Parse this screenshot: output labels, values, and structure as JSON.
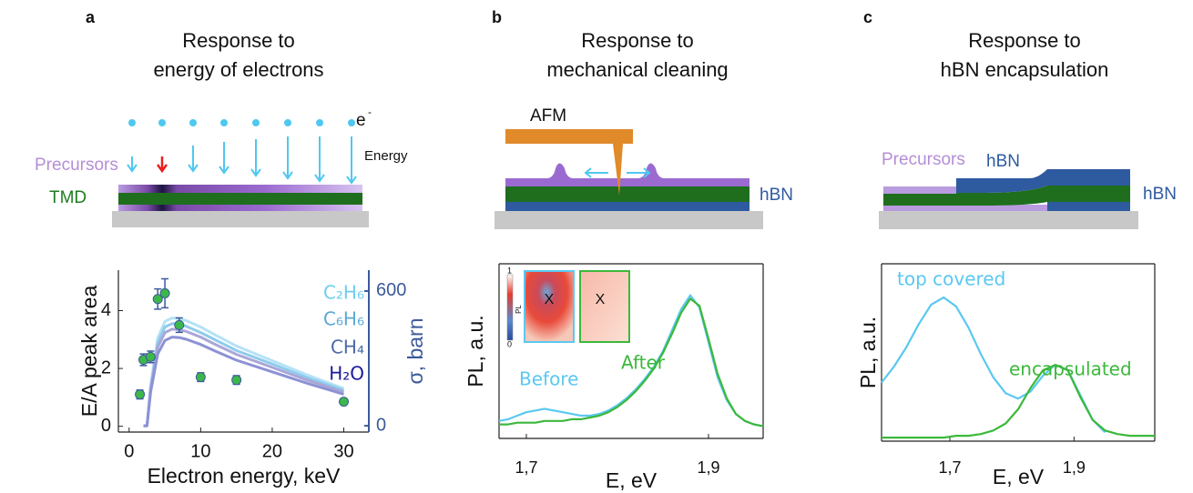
{
  "panels": [
    {
      "label": "a",
      "title_lines": [
        "Response to",
        "energy of electrons"
      ]
    },
    {
      "label": "b",
      "title_lines": [
        "Response to",
        "mechanical cleaning"
      ]
    },
    {
      "label": "c",
      "title_lines": [
        "Response to",
        "hBN encapsulation"
      ]
    }
  ],
  "diagrams": {
    "a": {
      "electron": "e",
      "electron_charge": "-",
      "precursors": "Precursors",
      "tmd": "TMD",
      "energy": "Energy"
    },
    "b": {
      "afm": "AFM",
      "hbn": "hBN"
    },
    "c": {
      "precursors": "Precursors",
      "hbn_top": "hBN",
      "hbn_right": "hBN"
    }
  },
  "inset": {
    "colorbar_max": "1",
    "colorbar_min": "0",
    "colorbar_label": "PL",
    "markers": [
      "X",
      "X"
    ]
  },
  "chart_data": [
    {
      "type": "line",
      "x_label": "Electron energy, keV",
      "y_label": "E/A peak area",
      "y2_label": "σ, barn",
      "xlim": [
        -1.5,
        33.5
      ],
      "xticks": [
        0,
        10,
        20,
        30
      ],
      "ylim": [
        -0.2,
        5.4
      ],
      "yticks": [
        0,
        2,
        4
      ],
      "y2lim": [
        -28,
        693
      ],
      "y2ticks": [
        0,
        600
      ],
      "y2_color": "#3c5a9a",
      "series": [
        {
          "name": "C₂H₆",
          "type": "line",
          "axis": "y2",
          "color": "#b5e2f6",
          "label_color": "#6fcff0",
          "x": [
            2,
            2.5,
            3,
            4,
            5,
            6,
            7,
            8,
            10,
            12,
            15,
            20,
            25,
            30
          ],
          "values": [
            0,
            0,
            180,
            390,
            465,
            480,
            477,
            468,
            440,
            405,
            355,
            290,
            225,
            166
          ]
        },
        {
          "name": "C₆H₆",
          "type": "line",
          "axis": "y2",
          "color": "#8fcbec",
          "label_color": "#5aa9d6",
          "x": [
            2,
            2.5,
            3,
            4,
            5,
            6,
            7,
            8,
            10,
            12,
            15,
            20,
            25,
            30
          ],
          "values": [
            0,
            0,
            170,
            370,
            440,
            455,
            452,
            443,
            415,
            383,
            335,
            275,
            213,
            158
          ]
        },
        {
          "name": "CH₄",
          "type": "line",
          "axis": "y2",
          "color": "#a9a6d8",
          "label_color": "#4a6aa8",
          "x": [
            2,
            2.5,
            3,
            4,
            5,
            6,
            7,
            8,
            10,
            12,
            15,
            20,
            25,
            30
          ],
          "values": [
            0,
            0,
            160,
            350,
            415,
            430,
            428,
            420,
            395,
            363,
            318,
            260,
            202,
            150
          ]
        },
        {
          "name": "H₂O",
          "type": "line",
          "axis": "y2",
          "color": "#8c92d4",
          "label_color": "#1a1a9a",
          "x": [
            2,
            2.5,
            3,
            4,
            5,
            6,
            7,
            8,
            10,
            12,
            15,
            20,
            25,
            30
          ],
          "values": [
            0,
            0,
            150,
            320,
            380,
            395,
            393,
            385,
            362,
            333,
            292,
            240,
            188,
            140
          ]
        },
        {
          "type": "scatter",
          "color": "#3cb84a",
          "error_color": "#3c5a9a",
          "x": [
            1.5,
            2,
            3,
            4,
            5,
            7,
            10,
            15,
            30
          ],
          "values": [
            1.1,
            2.3,
            2.4,
            4.4,
            4.6,
            3.5,
            1.7,
            1.6,
            0.85
          ],
          "errors": [
            0.15,
            0.2,
            0.2,
            0.35,
            0.5,
            0.25,
            0.15,
            0.15,
            0.1
          ]
        }
      ]
    },
    {
      "type": "line",
      "x_label": "E, eV",
      "y_label": "PL, a.u.",
      "xlim": [
        1.67,
        1.96
      ],
      "xticks": [
        {
          "value": 1.7,
          "label": "1,7"
        },
        {
          "value": 1.9,
          "label": "1,9"
        }
      ],
      "ylim": [
        0,
        1
      ],
      "series": [
        {
          "name": "Before",
          "color": "#5bc8f0",
          "x": [
            1.67,
            1.68,
            1.69,
            1.7,
            1.71,
            1.72,
            1.73,
            1.74,
            1.75,
            1.76,
            1.77,
            1.78,
            1.79,
            1.8,
            1.81,
            1.82,
            1.83,
            1.84,
            1.85,
            1.86,
            1.87,
            1.88,
            1.89,
            1.9,
            1.91,
            1.92,
            1.93,
            1.94,
            1.95,
            1.96
          ],
          "values": [
            0.1,
            0.11,
            0.13,
            0.15,
            0.16,
            0.17,
            0.16,
            0.15,
            0.14,
            0.13,
            0.13,
            0.14,
            0.16,
            0.19,
            0.23,
            0.28,
            0.34,
            0.41,
            0.5,
            0.62,
            0.74,
            0.82,
            0.75,
            0.55,
            0.35,
            0.22,
            0.14,
            0.1,
            0.08,
            0.07
          ]
        },
        {
          "name": "After",
          "color": "#3cb83c",
          "x": [
            1.67,
            1.68,
            1.69,
            1.7,
            1.71,
            1.72,
            1.73,
            1.74,
            1.75,
            1.76,
            1.77,
            1.78,
            1.79,
            1.8,
            1.81,
            1.82,
            1.83,
            1.84,
            1.85,
            1.86,
            1.87,
            1.88,
            1.89,
            1.9,
            1.91,
            1.92,
            1.93,
            1.94,
            1.95,
            1.96
          ],
          "values": [
            0.08,
            0.08,
            0.09,
            0.09,
            0.09,
            0.1,
            0.1,
            0.1,
            0.11,
            0.11,
            0.12,
            0.13,
            0.15,
            0.18,
            0.22,
            0.27,
            0.33,
            0.4,
            0.49,
            0.6,
            0.72,
            0.8,
            0.76,
            0.57,
            0.37,
            0.23,
            0.14,
            0.1,
            0.08,
            0.07
          ]
        }
      ]
    },
    {
      "type": "line",
      "x_label": "E, eV",
      "y_label": "PL, a.u.",
      "xlim": [
        1.59,
        2.03
      ],
      "xticks": [
        {
          "value": 1.7,
          "label": "1,7"
        },
        {
          "value": 1.9,
          "label": "1,9"
        }
      ],
      "ylim": [
        0,
        1
      ],
      "series": [
        {
          "name": "top covered",
          "color": "#5bc8f0",
          "x": [
            1.59,
            1.61,
            1.63,
            1.65,
            1.67,
            1.69,
            1.71,
            1.73,
            1.75,
            1.77,
            1.79,
            1.81,
            1.83,
            1.85,
            1.87,
            1.89,
            1.91,
            1.93,
            1.95
          ],
          "values": [
            0.33,
            0.42,
            0.53,
            0.66,
            0.77,
            0.81,
            0.76,
            0.64,
            0.49,
            0.36,
            0.27,
            0.24,
            0.28,
            0.37,
            0.43,
            0.4,
            0.26,
            0.12,
            0.05
          ]
        },
        {
          "name": "encapsulated",
          "color": "#3cb83c",
          "x": [
            1.59,
            1.61,
            1.63,
            1.65,
            1.67,
            1.69,
            1.71,
            1.73,
            1.75,
            1.77,
            1.79,
            1.81,
            1.83,
            1.85,
            1.87,
            1.89,
            1.91,
            1.93,
            1.95,
            1.97,
            1.99,
            2.01,
            2.03
          ],
          "values": [
            0.02,
            0.02,
            0.02,
            0.02,
            0.02,
            0.02,
            0.03,
            0.03,
            0.04,
            0.06,
            0.1,
            0.18,
            0.3,
            0.4,
            0.43,
            0.4,
            0.25,
            0.12,
            0.06,
            0.04,
            0.03,
            0.03,
            0.03
          ]
        }
      ]
    }
  ]
}
